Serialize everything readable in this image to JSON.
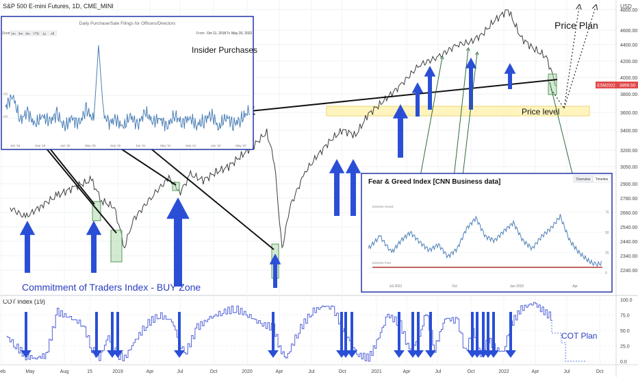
{
  "header": {
    "symbol_title": "S&P 500 E-mini Futures, 1D, CME_MINI",
    "currency": "USD",
    "cot_title": "COT Index (19)"
  },
  "price_badges": {
    "symbol": "ESM2022",
    "price": "3899.50",
    "symbol_color": "#e0484a",
    "price_color": "#e0484a"
  },
  "annotations": {
    "price_plan": "Price Plan",
    "price_level": "Price level",
    "insider_purchases": "Insider Purchases",
    "cot_buy_zone": "Commitment of Traders Index - BUY Zone",
    "cot_plan": "COT Plan"
  },
  "insider_inset": {
    "title": "Daily Purchase/Sale Filings for Officers/Directors",
    "zoom_label": "Zoom",
    "zoom_buttons": [
      "1m",
      "3m",
      "6m",
      "YTD",
      "1y",
      "All"
    ],
    "from_label": "From",
    "from_value": "Oct 11, 2018",
    "to_label": "To",
    "to_value": "May 20, 2022",
    "y_ticks": [
      "200",
      "100"
    ],
    "x_labels": [
      "Jan '19",
      "Sep '19",
      "Jan '20",
      "May '20",
      "Sep '20",
      "Jan '21",
      "May '21",
      "Sep '21",
      "Jan '22",
      "May '22"
    ],
    "line_color": "#4a7eb5"
  },
  "fear_greed_inset": {
    "title": "Fear & Greed Index [CNN Business data]",
    "tabs": [
      "Overview",
      "Timeline"
    ],
    "extreme_greed_label": "Extreme Greed",
    "extreme_fear_label": "Extreme Fear",
    "y_ticks": [
      "75",
      "50",
      "25",
      "0"
    ],
    "x_labels": [
      "Jul 2021",
      "Oct",
      "Jan 2022",
      "Apr"
    ]
  },
  "chart_data": {
    "type": "line",
    "price_axis": {
      "ticks": [
        "4800.00",
        "4600.00",
        "4400.00",
        "4200.00",
        "4000.00",
        "3800.00",
        "3600.00",
        "3400.00",
        "3200.00",
        "3050.00",
        "2900.00",
        "2780.00",
        "2660.00",
        "2540.00",
        "2440.00",
        "2340.00",
        "2240.00"
      ],
      "tick_values": [
        4800,
        4600,
        4400,
        4200,
        4000,
        3800,
        3600,
        3400,
        3200,
        3050,
        2900,
        2780,
        2660,
        2540,
        2440,
        2340,
        2240
      ]
    },
    "cot_axis": {
      "ticks": [
        "100.0",
        "75.0",
        "50.0",
        "25.0",
        "0.0"
      ],
      "tick_values": [
        100,
        75,
        50,
        25,
        0
      ],
      "ylim": [
        0,
        100
      ]
    },
    "x_labels": [
      "Feb",
      "May",
      "Aug",
      "15",
      "2019",
      "Apr",
      "Jul",
      "Oct",
      "2020",
      "Apr",
      "Jul",
      "Oct",
      "2021",
      "Apr",
      "Jul",
      "Oct",
      "2022",
      "Apr",
      "Jul",
      "Oct"
    ],
    "price_series": {
      "color": "#3b3b3b",
      "x": [
        2018.08,
        2018.2,
        2018.33,
        2018.45,
        2018.6,
        2018.72,
        2018.8,
        2018.9,
        2018.98,
        2019.05,
        2019.2,
        2019.33,
        2019.42,
        2019.5,
        2019.6,
        2019.7,
        2019.8,
        2019.9,
        2020.0,
        2020.1,
        2020.16,
        2020.22,
        2020.28,
        2020.4,
        2020.5,
        2020.6,
        2020.7,
        2020.8,
        2020.9,
        2021.0,
        2021.15,
        2021.3,
        2021.45,
        2021.6,
        2021.7,
        2021.8,
        2021.9,
        2022.0,
        2022.1,
        2022.2,
        2022.3,
        2022.38
      ],
      "y": [
        2700,
        2620,
        2720,
        2800,
        2880,
        2930,
        2760,
        2700,
        2400,
        2600,
        2800,
        2950,
        2830,
        2980,
        2930,
        3000,
        3050,
        3150,
        3250,
        3380,
        3100,
        2380,
        2700,
        3000,
        3150,
        3300,
        3400,
        3350,
        3580,
        3700,
        3900,
        4150,
        4250,
        4400,
        4430,
        4550,
        4700,
        4800,
        4500,
        4350,
        4250,
        3900
      ]
    },
    "cot_series": {
      "name": "COT Index (19)",
      "color": "#4f5fd8",
      "x": [
        2018.05,
        2018.12,
        2018.2,
        2018.28,
        2018.36,
        2018.45,
        2018.55,
        2018.65,
        2018.72,
        2018.78,
        2018.85,
        2018.92,
        2018.98,
        2019.05,
        2019.15,
        2019.25,
        2019.35,
        2019.45,
        2019.55,
        2019.65,
        2019.75,
        2019.85,
        2019.95,
        2020.05,
        2020.15,
        2020.2,
        2020.25,
        2020.35,
        2020.45,
        2020.55,
        2020.62,
        2020.68,
        2020.75,
        2020.82,
        2020.9,
        2020.95,
        2021.05,
        2021.15,
        2021.22,
        2021.3,
        2021.35,
        2021.42,
        2021.5,
        2021.6,
        2021.66,
        2021.72,
        2021.78,
        2021.84,
        2021.9,
        2021.96,
        2022.02,
        2022.1,
        2022.2,
        2022.28,
        2022.35
      ],
      "y": [
        40,
        25,
        8,
        5,
        10,
        80,
        70,
        60,
        20,
        5,
        40,
        10,
        5,
        30,
        60,
        75,
        65,
        10,
        55,
        70,
        80,
        85,
        75,
        60,
        55,
        20,
        5,
        50,
        80,
        90,
        85,
        60,
        30,
        10,
        5,
        25,
        75,
        60,
        15,
        40,
        80,
        20,
        70,
        65,
        15,
        50,
        10,
        35,
        20,
        15,
        60,
        85,
        95,
        80,
        70
      ]
    },
    "fear_greed_series": {
      "color": "#4a7eb5",
      "x": [
        0.0,
        0.05,
        0.1,
        0.14,
        0.18,
        0.22,
        0.26,
        0.3,
        0.34,
        0.38,
        0.42,
        0.46,
        0.5,
        0.54,
        0.58,
        0.62,
        0.66,
        0.7,
        0.74,
        0.78,
        0.82,
        0.86,
        0.9,
        0.94,
        0.97,
        1.0
      ],
      "y": [
        30,
        45,
        25,
        40,
        50,
        38,
        28,
        35,
        20,
        30,
        55,
        68,
        45,
        40,
        52,
        62,
        40,
        30,
        45,
        55,
        70,
        40,
        25,
        15,
        10,
        12
      ],
      "ylim": [
        0,
        100
      ]
    },
    "insider_series": {
      "x": [
        0.0,
        0.03,
        0.06,
        0.09,
        0.12,
        0.15,
        0.18,
        0.21,
        0.24,
        0.27,
        0.3,
        0.33,
        0.36,
        0.38,
        0.4,
        0.42,
        0.45,
        0.48,
        0.51,
        0.54,
        0.57,
        0.6,
        0.63,
        0.66,
        0.69,
        0.72,
        0.75,
        0.78,
        0.81,
        0.84,
        0.87,
        0.9,
        0.93,
        0.96,
        1.0
      ],
      "y": [
        150,
        200,
        90,
        130,
        70,
        110,
        85,
        120,
        60,
        100,
        75,
        140,
        90,
        420,
        120,
        80,
        95,
        60,
        110,
        70,
        130,
        85,
        100,
        65,
        115,
        80,
        105,
        70,
        90,
        120,
        60,
        110,
        75,
        95,
        140
      ],
      "ylim": [
        0,
        450
      ]
    }
  }
}
